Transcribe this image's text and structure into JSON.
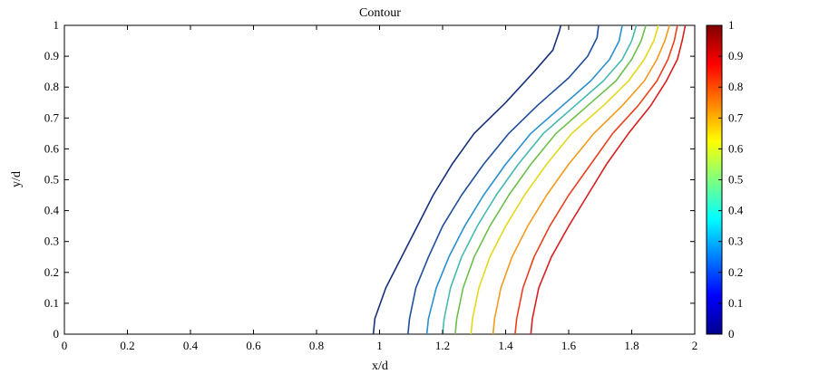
{
  "chart_data": {
    "type": "contour",
    "title": "Contour",
    "xlabel": "x/d",
    "ylabel": "y/d",
    "xlim": [
      0,
      2
    ],
    "ylim": [
      0,
      1
    ],
    "x_ticks": [
      "0",
      "0.2",
      "0.4",
      "0.6",
      "0.8",
      "1",
      "1.2",
      "1.4",
      "1.6",
      "1.8",
      "2"
    ],
    "y_ticks": [
      "0",
      "0.1",
      "0.2",
      "0.3",
      "0.4",
      "0.5",
      "0.6",
      "0.7",
      "0.8",
      "0.9",
      "1"
    ],
    "colorbar": {
      "ticks": [
        "0",
        "0.1",
        "0.2",
        "0.3",
        "0.4",
        "0.5",
        "0.6",
        "0.7",
        "0.8",
        "0.9",
        "1"
      ],
      "range": [
        0,
        1
      ],
      "colormap": [
        "#00008f",
        "#0000ff",
        "#00ffff",
        "#ffff00",
        "#ff0000",
        "#800000"
      ]
    },
    "series": [
      {
        "level": 0.1,
        "color": "#18307a",
        "points": [
          [
            0.98,
            0.0
          ],
          [
            0.985,
            0.05
          ],
          [
            1.02,
            0.15
          ],
          [
            1.07,
            0.25
          ],
          [
            1.12,
            0.35
          ],
          [
            1.17,
            0.45
          ],
          [
            1.23,
            0.55
          ],
          [
            1.3,
            0.65
          ],
          [
            1.4,
            0.75
          ],
          [
            1.49,
            0.85
          ],
          [
            1.55,
            0.92
          ],
          [
            1.57,
            0.98
          ],
          [
            1.575,
            1.0
          ]
        ]
      },
      {
        "level": 0.2,
        "color": "#1f4e9c",
        "points": [
          [
            1.09,
            0.0
          ],
          [
            1.095,
            0.05
          ],
          [
            1.115,
            0.15
          ],
          [
            1.155,
            0.25
          ],
          [
            1.2,
            0.35
          ],
          [
            1.26,
            0.45
          ],
          [
            1.33,
            0.55
          ],
          [
            1.41,
            0.65
          ],
          [
            1.5,
            0.74
          ],
          [
            1.6,
            0.83
          ],
          [
            1.66,
            0.9
          ],
          [
            1.69,
            0.96
          ],
          [
            1.695,
            1.0
          ]
        ]
      },
      {
        "level": 0.3,
        "color": "#2a8fd0",
        "points": [
          [
            1.15,
            0.0
          ],
          [
            1.155,
            0.05
          ],
          [
            1.18,
            0.15
          ],
          [
            1.22,
            0.25
          ],
          [
            1.27,
            0.35
          ],
          [
            1.33,
            0.45
          ],
          [
            1.4,
            0.55
          ],
          [
            1.48,
            0.65
          ],
          [
            1.58,
            0.74
          ],
          [
            1.67,
            0.82
          ],
          [
            1.73,
            0.89
          ],
          [
            1.76,
            0.95
          ],
          [
            1.77,
            1.0
          ]
        ]
      },
      {
        "level": 0.4,
        "color": "#45b8b0",
        "points": [
          [
            1.2,
            0.0
          ],
          [
            1.205,
            0.05
          ],
          [
            1.225,
            0.15
          ],
          [
            1.26,
            0.25
          ],
          [
            1.31,
            0.35
          ],
          [
            1.37,
            0.45
          ],
          [
            1.44,
            0.55
          ],
          [
            1.52,
            0.65
          ],
          [
            1.62,
            0.74
          ],
          [
            1.71,
            0.82
          ],
          [
            1.77,
            0.89
          ],
          [
            1.8,
            0.95
          ],
          [
            1.815,
            1.0
          ]
        ]
      },
      {
        "level": 0.5,
        "color": "#6cbf4a",
        "points": [
          [
            1.24,
            0.0
          ],
          [
            1.245,
            0.05
          ],
          [
            1.265,
            0.15
          ],
          [
            1.3,
            0.25
          ],
          [
            1.35,
            0.35
          ],
          [
            1.41,
            0.45
          ],
          [
            1.48,
            0.55
          ],
          [
            1.56,
            0.65
          ],
          [
            1.66,
            0.74
          ],
          [
            1.75,
            0.82
          ],
          [
            1.8,
            0.89
          ],
          [
            1.83,
            0.95
          ],
          [
            1.845,
            1.0
          ]
        ]
      },
      {
        "level": 0.6,
        "color": "#e2d91c",
        "points": [
          [
            1.29,
            0.0
          ],
          [
            1.295,
            0.05
          ],
          [
            1.315,
            0.15
          ],
          [
            1.35,
            0.25
          ],
          [
            1.4,
            0.35
          ],
          [
            1.46,
            0.45
          ],
          [
            1.53,
            0.55
          ],
          [
            1.61,
            0.65
          ],
          [
            1.71,
            0.74
          ],
          [
            1.79,
            0.82
          ],
          [
            1.84,
            0.89
          ],
          [
            1.87,
            0.95
          ],
          [
            1.885,
            1.0
          ]
        ]
      },
      {
        "level": 0.7,
        "color": "#f39a1a",
        "points": [
          [
            1.36,
            0.0
          ],
          [
            1.365,
            0.05
          ],
          [
            1.385,
            0.15
          ],
          [
            1.42,
            0.25
          ],
          [
            1.47,
            0.35
          ],
          [
            1.53,
            0.45
          ],
          [
            1.6,
            0.55
          ],
          [
            1.68,
            0.65
          ],
          [
            1.77,
            0.74
          ],
          [
            1.84,
            0.82
          ],
          [
            1.88,
            0.89
          ],
          [
            1.905,
            0.95
          ],
          [
            1.92,
            1.0
          ]
        ]
      },
      {
        "level": 0.8,
        "color": "#e8401c",
        "points": [
          [
            1.43,
            0.0
          ],
          [
            1.435,
            0.05
          ],
          [
            1.455,
            0.15
          ],
          [
            1.49,
            0.25
          ],
          [
            1.54,
            0.35
          ],
          [
            1.6,
            0.45
          ],
          [
            1.67,
            0.55
          ],
          [
            1.74,
            0.65
          ],
          [
            1.82,
            0.74
          ],
          [
            1.88,
            0.82
          ],
          [
            1.915,
            0.89
          ],
          [
            1.935,
            0.95
          ],
          [
            1.945,
            1.0
          ]
        ]
      },
      {
        "level": 0.9,
        "color": "#d81e1e",
        "points": [
          [
            1.48,
            0.0
          ],
          [
            1.485,
            0.05
          ],
          [
            1.505,
            0.15
          ],
          [
            1.545,
            0.25
          ],
          [
            1.6,
            0.35
          ],
          [
            1.66,
            0.45
          ],
          [
            1.72,
            0.55
          ],
          [
            1.79,
            0.65
          ],
          [
            1.86,
            0.74
          ],
          [
            1.91,
            0.82
          ],
          [
            1.945,
            0.89
          ],
          [
            1.96,
            0.95
          ],
          [
            1.97,
            1.0
          ]
        ]
      }
    ]
  }
}
